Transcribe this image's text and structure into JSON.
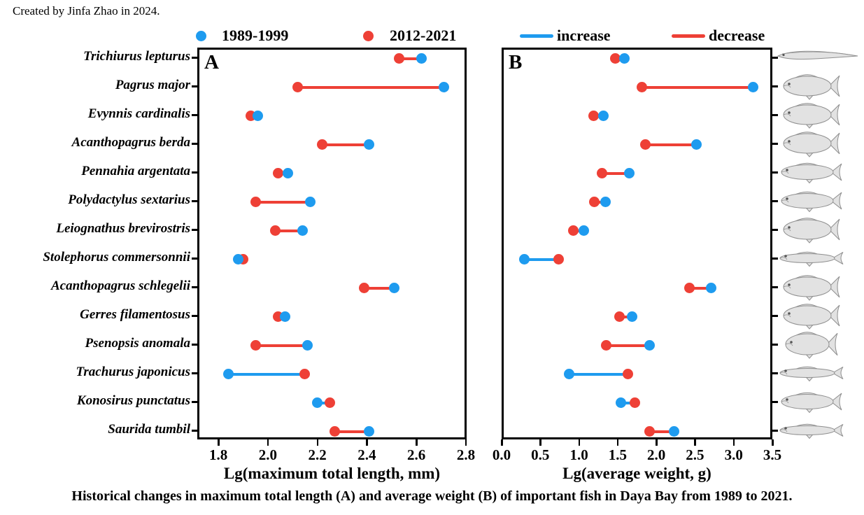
{
  "credit": "Created by Jinfa Zhao in 2024.",
  "caption": "Historical changes in maximum total length (A) and average weight (B) of important fish in Daya Bay from 1989 to 2021.",
  "colors": {
    "blue": "#1e9bef",
    "red": "#ee4036",
    "fish_fill": "#e2e2e2",
    "fish_stroke": "#8f8f8f"
  },
  "legend": {
    "period1_label": "1989-1999",
    "period2_label": "2012-2021",
    "increase_label": "increase",
    "decrease_label": "decrease"
  },
  "species": [
    "Trichiurus lepturus",
    "Pagrus major",
    "Evynnis cardinalis",
    "Acanthopagrus berda",
    "Pennahia argentata",
    "Polydactylus sextarius",
    "Leiognathus brevirostris",
    "Stolephorus commersonnii",
    "Acanthopagrus schlegelii",
    "Gerres filamentosus",
    "Psenopsis anomala",
    "Trachurus japonicus",
    "Konosirus punctatus",
    "Saurida tumbil"
  ],
  "fish_shapes": [
    "ribbon",
    "deep",
    "deep",
    "deep",
    "medium",
    "medium",
    "deep",
    "slender",
    "deep",
    "deep",
    "round",
    "slender",
    "medium",
    "slender"
  ],
  "chart_data": [
    {
      "type": "dumbbell",
      "panel": "A",
      "xlabel": "Lg(maximum total length, mm)",
      "xlim": [
        1.715,
        2.803
      ],
      "xticks": [
        "1.8",
        "2.0",
        "2.2",
        "2.4",
        "2.6",
        "2.8"
      ],
      "xtick_values": [
        1.8,
        2.0,
        2.2,
        2.4,
        2.6,
        2.8
      ],
      "categories": [
        "Trichiurus lepturus",
        "Pagrus major",
        "Evynnis cardinalis",
        "Acanthopagrus berda",
        "Pennahia argentata",
        "Polydactylus sextarius",
        "Leiognathus brevirostris",
        "Stolephorus commersonnii",
        "Acanthopagrus schlegelii",
        "Gerres filamentosus",
        "Psenopsis anomala",
        "Trachurus japonicus",
        "Konosirus punctatus",
        "Saurida tumbil"
      ],
      "series": [
        {
          "name": "1989-1999",
          "values": [
            2.62,
            2.71,
            1.96,
            2.41,
            2.08,
            2.17,
            2.14,
            1.88,
            2.51,
            2.07,
            2.16,
            1.84,
            2.2,
            2.41
          ]
        },
        {
          "name": "2012-2021",
          "values": [
            2.53,
            2.12,
            1.93,
            2.22,
            2.04,
            1.95,
            2.03,
            1.9,
            2.39,
            2.04,
            1.95,
            2.15,
            2.25,
            2.27
          ]
        }
      ],
      "change": [
        "decrease",
        "decrease",
        "decrease",
        "decrease",
        "decrease",
        "decrease",
        "decrease",
        "increase",
        "decrease",
        "decrease",
        "decrease",
        "increase",
        "increase",
        "decrease"
      ]
    },
    {
      "type": "dumbbell",
      "panel": "B",
      "xlabel": "Lg(average weight, g)",
      "xlim": [
        0.0,
        3.5
      ],
      "xticks": [
        "0.0",
        "0.5",
        "1.0",
        "1.5",
        "2.0",
        "2.5",
        "3.0",
        "3.5"
      ],
      "xtick_values": [
        0.0,
        0.5,
        1.0,
        1.5,
        2.0,
        2.5,
        3.0,
        3.5
      ],
      "categories": [
        "Trichiurus lepturus",
        "Pagrus major",
        "Evynnis cardinalis",
        "Acanthopagrus berda",
        "Pennahia argentata",
        "Polydactylus sextarius",
        "Leiognathus brevirostris",
        "Stolephorus commersonnii",
        "Acanthopagrus schlegelii",
        "Gerres filamentosus",
        "Psenopsis anomala",
        "Trachurus japonicus",
        "Konosirus punctatus",
        "Saurida tumbil"
      ],
      "series": [
        {
          "name": "1989-1999",
          "values": [
            1.59,
            3.25,
            1.32,
            2.52,
            1.65,
            1.34,
            1.06,
            0.29,
            2.71,
            1.69,
            1.91,
            0.87,
            1.54,
            2.23
          ]
        },
        {
          "name": "2012-2021",
          "values": [
            1.47,
            1.81,
            1.19,
            1.86,
            1.3,
            1.2,
            0.93,
            0.74,
            2.43,
            1.52,
            1.35,
            1.63,
            1.72,
            1.91
          ]
        }
      ],
      "change": [
        "decrease",
        "decrease",
        "decrease",
        "decrease",
        "decrease",
        "decrease",
        "decrease",
        "increase",
        "decrease",
        "decrease",
        "decrease",
        "increase",
        "increase",
        "decrease"
      ]
    }
  ],
  "panel_letters": {
    "a": "A",
    "b": "B"
  }
}
